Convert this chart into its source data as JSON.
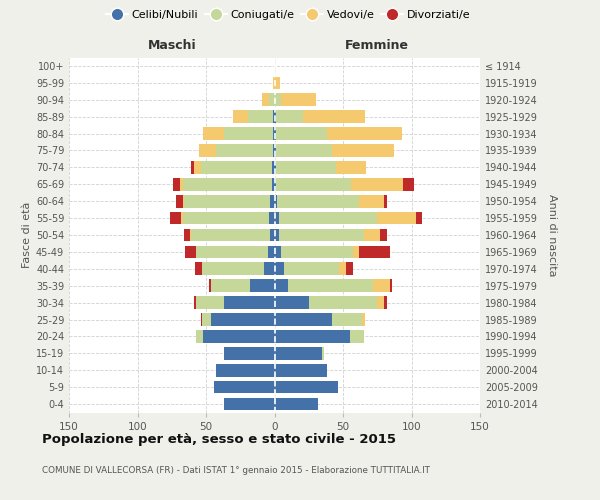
{
  "age_groups": [
    "0-4",
    "5-9",
    "10-14",
    "15-19",
    "20-24",
    "25-29",
    "30-34",
    "35-39",
    "40-44",
    "45-49",
    "50-54",
    "55-59",
    "60-64",
    "65-69",
    "70-74",
    "75-79",
    "80-84",
    "85-89",
    "90-94",
    "95-99",
    "100+"
  ],
  "birth_years": [
    "2010-2014",
    "2005-2009",
    "2000-2004",
    "1995-1999",
    "1990-1994",
    "1985-1989",
    "1980-1984",
    "1975-1979",
    "1970-1974",
    "1965-1969",
    "1960-1964",
    "1955-1959",
    "1950-1954",
    "1945-1949",
    "1940-1944",
    "1935-1939",
    "1930-1934",
    "1925-1929",
    "1920-1924",
    "1915-1919",
    "≤ 1914"
  ],
  "male": {
    "celibi": [
      37,
      44,
      43,
      37,
      52,
      46,
      37,
      18,
      8,
      5,
      3,
      4,
      3,
      2,
      2,
      1,
      1,
      1,
      0,
      0,
      0
    ],
    "coniugati": [
      0,
      0,
      0,
      0,
      5,
      7,
      20,
      28,
      45,
      52,
      58,
      63,
      63,
      65,
      52,
      42,
      36,
      18,
      4,
      0,
      0
    ],
    "vedovi": [
      0,
      0,
      0,
      0,
      0,
      0,
      0,
      0,
      0,
      0,
      1,
      1,
      1,
      2,
      5,
      12,
      15,
      11,
      5,
      1,
      0
    ],
    "divorziati": [
      0,
      0,
      0,
      0,
      0,
      1,
      2,
      2,
      5,
      8,
      4,
      8,
      5,
      5,
      2,
      0,
      0,
      0,
      0,
      0,
      0
    ]
  },
  "female": {
    "nubili": [
      32,
      46,
      38,
      35,
      55,
      42,
      25,
      10,
      7,
      5,
      3,
      3,
      2,
      1,
      1,
      1,
      1,
      1,
      0,
      0,
      0
    ],
    "coniugate": [
      0,
      0,
      0,
      1,
      10,
      22,
      50,
      62,
      40,
      52,
      62,
      72,
      60,
      55,
      44,
      41,
      37,
      20,
      5,
      0,
      0
    ],
    "vedove": [
      0,
      0,
      0,
      0,
      0,
      2,
      5,
      12,
      5,
      5,
      12,
      28,
      18,
      38,
      22,
      45,
      55,
      45,
      25,
      4,
      0
    ],
    "divorziate": [
      0,
      0,
      0,
      0,
      0,
      0,
      2,
      2,
      5,
      22,
      5,
      5,
      2,
      8,
      0,
      0,
      0,
      0,
      0,
      0,
      0
    ]
  },
  "colors": {
    "celibi": "#4472a8",
    "coniugati": "#c5d89a",
    "vedovi": "#f5c96e",
    "divorziati": "#c0292a"
  },
  "xlim": 150,
  "title": "Popolazione per età, sesso e stato civile - 2015",
  "subtitle": "COMUNE DI VALLECORSA (FR) - Dati ISTAT 1° gennaio 2015 - Elaborazione TUTTITALIA.IT",
  "ylabel_left": "Fasce di età",
  "ylabel_right": "Anni di nascita",
  "xlabel_left": "Maschi",
  "xlabel_right": "Femmine",
  "bg_color": "#f0f0ea",
  "plot_bg": "#ffffff",
  "grid_color": "#cccccc",
  "bar_height": 0.75
}
